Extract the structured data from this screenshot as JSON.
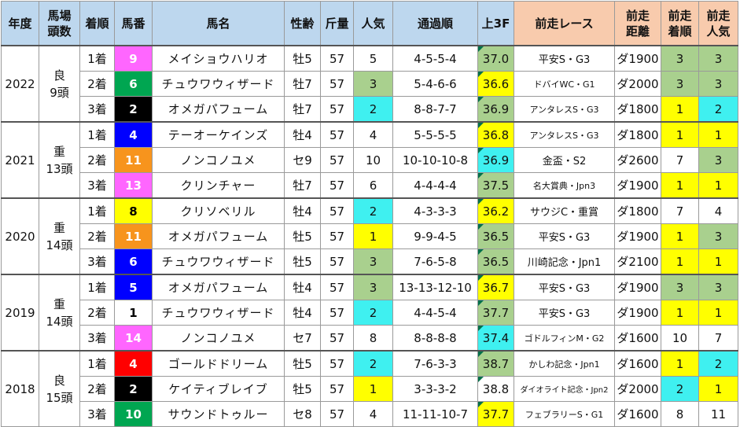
{
  "headers": {
    "year": "年度",
    "field": "馬場\n頭数",
    "rank": "着順",
    "horse_no": "馬番",
    "horse_name": "馬名",
    "sex_age": "性齢",
    "weight": "斤量",
    "popularity": "人気",
    "passing": "通過順",
    "last3f": "上3F",
    "prev_race": "前走レース",
    "prev_distance": "前走\n距離",
    "prev_rank": "前走\n着順",
    "prev_popularity": "前走\n人気"
  },
  "colors": {
    "header_blue": "#bdd7ee",
    "header_pink": "#f8cbad",
    "green": "#a9d08e",
    "cyan": "#3ff0f0",
    "yellow": "#ffff00"
  },
  "years": [
    {
      "year": "2022",
      "condition": "良",
      "field_size": "9頭",
      "rows": [
        {
          "rank": "1着",
          "no": "9",
          "no_bg": "#ff66ff",
          "no_fg": "#ffffff",
          "name": "メイショウハリオ",
          "sex_age": "牡5",
          "weight": "57",
          "pop": "5",
          "pop_bg": "",
          "passing": "4-5-5-4",
          "f3": "37.0",
          "f3_bg": "#a9d08e",
          "prev_race": "平安S・G3",
          "race_size": "normal",
          "prev_dist": "ダ1900",
          "prev_rank": "3",
          "prev_rank_bg": "#a9d08e",
          "prev_pop": "3",
          "prev_pop_bg": "#a9d08e"
        },
        {
          "rank": "2着",
          "no": "6",
          "no_bg": "#00a651",
          "no_fg": "#ffffff",
          "name": "チュウワウィザード",
          "sex_age": "牡7",
          "weight": "57",
          "pop": "3",
          "pop_bg": "#a9d08e",
          "passing": "5-4-6-6",
          "f3": "36.6",
          "f3_bg": "#ffff00",
          "prev_race": "ドバイWC・G1",
          "race_size": "small",
          "prev_dist": "ダ2000",
          "prev_rank": "3",
          "prev_rank_bg": "#a9d08e",
          "prev_pop": "3",
          "prev_pop_bg": "#a9d08e"
        },
        {
          "rank": "3着",
          "no": "2",
          "no_bg": "#000000",
          "no_fg": "#ffffff",
          "name": "オメガパフューム",
          "sex_age": "牡7",
          "weight": "57",
          "pop": "2",
          "pop_bg": "#3ff0f0",
          "passing": "8-8-7-7",
          "f3": "36.9",
          "f3_bg": "#a9d08e",
          "prev_race": "アンタレスS・G3",
          "race_size": "small",
          "prev_dist": "ダ1800",
          "prev_rank": "1",
          "prev_rank_bg": "#ffff00",
          "prev_pop": "2",
          "prev_pop_bg": "#3ff0f0"
        }
      ]
    },
    {
      "year": "2021",
      "condition": "重",
      "field_size": "13頭",
      "rows": [
        {
          "rank": "1着",
          "no": "4",
          "no_bg": "#0000ff",
          "no_fg": "#ffffff",
          "name": "テーオーケインズ",
          "sex_age": "牡4",
          "weight": "57",
          "pop": "4",
          "pop_bg": "",
          "passing": "5-5-5-5",
          "f3": "36.8",
          "f3_bg": "#ffff00",
          "prev_race": "アンタレスS・G3",
          "race_size": "small",
          "prev_dist": "ダ1800",
          "prev_rank": "1",
          "prev_rank_bg": "#ffff00",
          "prev_pop": "1",
          "prev_pop_bg": "#ffff00"
        },
        {
          "rank": "2着",
          "no": "11",
          "no_bg": "#f7941d",
          "no_fg": "#ffffff",
          "name": "ノンコノユメ",
          "sex_age": "セ9",
          "weight": "57",
          "pop": "10",
          "pop_bg": "",
          "passing": "10-10-10-8",
          "f3": "36.9",
          "f3_bg": "#3ff0f0",
          "prev_race": "金盃・S2",
          "race_size": "normal",
          "prev_dist": "ダ2600",
          "prev_rank": "7",
          "prev_rank_bg": "",
          "prev_pop": "3",
          "prev_pop_bg": "#a9d08e"
        },
        {
          "rank": "3着",
          "no": "13",
          "no_bg": "#ff66ff",
          "no_fg": "#ffffff",
          "name": "クリンチャー",
          "sex_age": "牡7",
          "weight": "57",
          "pop": "6",
          "pop_bg": "",
          "passing": "4-4-4-4",
          "f3": "37.5",
          "f3_bg": "#a9d08e",
          "prev_race": "名大賞典・Jpn3",
          "race_size": "small",
          "prev_dist": "ダ1900",
          "prev_rank": "1",
          "prev_rank_bg": "#ffff00",
          "prev_pop": "1",
          "prev_pop_bg": "#ffff00"
        }
      ]
    },
    {
      "year": "2020",
      "condition": "重",
      "field_size": "14頭",
      "rows": [
        {
          "rank": "1着",
          "no": "8",
          "no_bg": "#ffff00",
          "no_fg": "#000000",
          "name": "クリソベリル",
          "sex_age": "牡4",
          "weight": "57",
          "pop": "2",
          "pop_bg": "#3ff0f0",
          "passing": "4-3-3-3",
          "f3": "36.2",
          "f3_bg": "#ffff00",
          "prev_race": "サウジC・重賞",
          "race_size": "normal",
          "prev_dist": "ダ1800",
          "prev_rank": "7",
          "prev_rank_bg": "",
          "prev_pop": "4",
          "prev_pop_bg": ""
        },
        {
          "rank": "2着",
          "no": "11",
          "no_bg": "#f7941d",
          "no_fg": "#ffffff",
          "name": "オメガパフューム",
          "sex_age": "牡5",
          "weight": "57",
          "pop": "1",
          "pop_bg": "#ffff00",
          "passing": "9-9-4-5",
          "f3": "36.5",
          "f3_bg": "#a9d08e",
          "prev_race": "平安S・G3",
          "race_size": "normal",
          "prev_dist": "ダ1900",
          "prev_rank": "1",
          "prev_rank_bg": "#ffff00",
          "prev_pop": "3",
          "prev_pop_bg": "#a9d08e"
        },
        {
          "rank": "3着",
          "no": "6",
          "no_bg": "#0000ff",
          "no_fg": "#ffffff",
          "name": "チュウワウィザード",
          "sex_age": "牡5",
          "weight": "57",
          "pop": "3",
          "pop_bg": "#a9d08e",
          "passing": "7-6-5-8",
          "f3": "36.5",
          "f3_bg": "#a9d08e",
          "prev_race": "川崎記念・Jpn1",
          "race_size": "normal",
          "prev_dist": "ダ2100",
          "prev_rank": "1",
          "prev_rank_bg": "#ffff00",
          "prev_pop": "1",
          "prev_pop_bg": "#ffff00"
        }
      ]
    },
    {
      "year": "2019",
      "condition": "重",
      "field_size": "14頭",
      "rows": [
        {
          "rank": "1着",
          "no": "5",
          "no_bg": "#0000ff",
          "no_fg": "#ffffff",
          "name": "オメガパフューム",
          "sex_age": "牡4",
          "weight": "57",
          "pop": "3",
          "pop_bg": "#a9d08e",
          "passing": "13-13-12-10",
          "f3": "36.7",
          "f3_bg": "#ffff00",
          "prev_race": "平安S・G3",
          "race_size": "normal",
          "prev_dist": "ダ1900",
          "prev_rank": "3",
          "prev_rank_bg": "#a9d08e",
          "prev_pop": "3",
          "prev_pop_bg": "#a9d08e"
        },
        {
          "rank": "2着",
          "no": "1",
          "no_bg": "#ffffff",
          "no_fg": "#000000",
          "name": "チュウワウィザード",
          "sex_age": "牡4",
          "weight": "57",
          "pop": "2",
          "pop_bg": "#3ff0f0",
          "passing": "4-4-5-4",
          "f3": "37.7",
          "f3_bg": "#a9d08e",
          "prev_race": "平安S・G3",
          "race_size": "normal",
          "prev_dist": "ダ1900",
          "prev_rank": "1",
          "prev_rank_bg": "#ffff00",
          "prev_pop": "1",
          "prev_pop_bg": "#ffff00"
        },
        {
          "rank": "3着",
          "no": "14",
          "no_bg": "#ff66ff",
          "no_fg": "#ffffff",
          "name": "ノンコノユメ",
          "sex_age": "セ7",
          "weight": "57",
          "pop": "8",
          "pop_bg": "",
          "passing": "8-8-8-8",
          "f3": "37.4",
          "f3_bg": "#3ff0f0",
          "prev_race": "ゴドルフィンM・G2",
          "race_size": "small",
          "prev_dist": "ダ1600",
          "prev_rank": "10",
          "prev_rank_bg": "",
          "prev_pop": "7",
          "prev_pop_bg": ""
        }
      ]
    },
    {
      "year": "2018",
      "condition": "良",
      "field_size": "15頭",
      "rows": [
        {
          "rank": "1着",
          "no": "4",
          "no_bg": "#ff0000",
          "no_fg": "#ffffff",
          "name": "ゴールドドリーム",
          "sex_age": "牡5",
          "weight": "57",
          "pop": "2",
          "pop_bg": "#3ff0f0",
          "passing": "7-6-3-3",
          "f3": "38.7",
          "f3_bg": "#a9d08e",
          "prev_race": "かしわ記念・Jpn1",
          "race_size": "small",
          "prev_dist": "ダ1600",
          "prev_rank": "1",
          "prev_rank_bg": "#ffff00",
          "prev_pop": "2",
          "prev_pop_bg": "#3ff0f0"
        },
        {
          "rank": "2着",
          "no": "2",
          "no_bg": "#000000",
          "no_fg": "#ffffff",
          "name": "ケイティブレイブ",
          "sex_age": "牡5",
          "weight": "57",
          "pop": "1",
          "pop_bg": "#ffff00",
          "passing": "3-3-3-2",
          "f3": "38.8",
          "f3_bg": "",
          "prev_race": "ダイオライト記念・Jpn2",
          "race_size": "tiny",
          "prev_dist": "ダ2000",
          "prev_rank": "2",
          "prev_rank_bg": "#3ff0f0",
          "prev_pop": "1",
          "prev_pop_bg": "#ffff00"
        },
        {
          "rank": "3着",
          "no": "10",
          "no_bg": "#00a651",
          "no_fg": "#ffffff",
          "name": "サウンドトゥルー",
          "sex_age": "セ8",
          "weight": "57",
          "pop": "4",
          "pop_bg": "",
          "passing": "11-11-10-7",
          "f3": "37.7",
          "f3_bg": "#ffff00",
          "prev_race": "フェブラリーS・G1",
          "race_size": "small",
          "prev_dist": "ダ1600",
          "prev_rank": "8",
          "prev_rank_bg": "",
          "prev_pop": "11",
          "prev_pop_bg": ""
        }
      ]
    }
  ]
}
